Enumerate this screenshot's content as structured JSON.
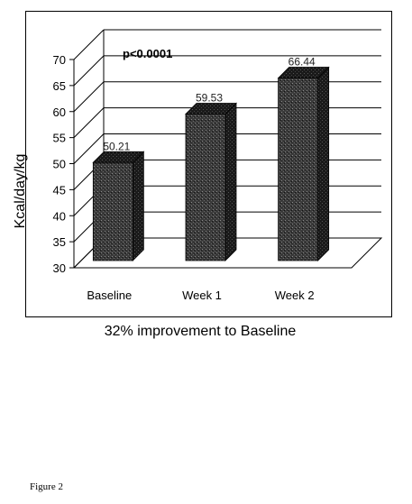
{
  "chart_data": {
    "type": "bar",
    "categories": [
      "Baseline",
      "Week 1",
      "Week 2"
    ],
    "values": [
      50.21,
      59.53,
      66.44
    ],
    "data_labels": [
      "50.21",
      "59.53",
      "66.44"
    ],
    "ylabel": "Kcal/day/kg",
    "xlabel": "32% improvement to Baseline",
    "ylim": [
      30,
      70
    ],
    "yticks": [
      30,
      35,
      40,
      45,
      50,
      55,
      60,
      65,
      70
    ],
    "annotation": "p<0.0001",
    "grid": true,
    "style": "3d",
    "bar_color": "#2a2a2a"
  },
  "figure_label": "Figure 2"
}
